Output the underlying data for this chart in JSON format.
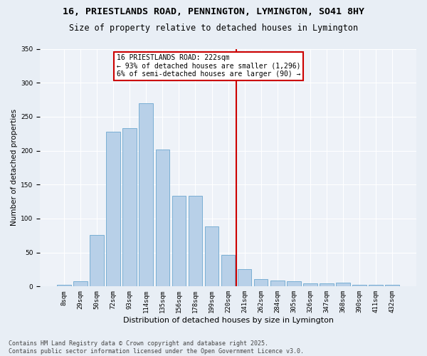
{
  "title_line1": "16, PRIESTLANDS ROAD, PENNINGTON, LYMINGTON, SO41 8HY",
  "title_line2": "Size of property relative to detached houses in Lymington",
  "xlabel": "Distribution of detached houses by size in Lymington",
  "ylabel": "Number of detached properties",
  "categories": [
    "8sqm",
    "29sqm",
    "50sqm",
    "72sqm",
    "93sqm",
    "114sqm",
    "135sqm",
    "156sqm",
    "178sqm",
    "199sqm",
    "220sqm",
    "241sqm",
    "262sqm",
    "284sqm",
    "305sqm",
    "326sqm",
    "347sqm",
    "368sqm",
    "390sqm",
    "411sqm",
    "432sqm"
  ],
  "values": [
    2,
    8,
    76,
    228,
    233,
    270,
    202,
    133,
    133,
    88,
    46,
    25,
    11,
    9,
    8,
    5,
    5,
    6,
    2,
    2,
    2
  ],
  "bar_color": "#b8d0e8",
  "bar_edge_color": "#7aafd4",
  "vline_color": "#cc0000",
  "annotation_text": "16 PRIESTLANDS ROAD: 222sqm\n← 93% of detached houses are smaller (1,296)\n6% of semi-detached houses are larger (90) →",
  "annotation_box_color": "#cc0000",
  "ylim": [
    0,
    350
  ],
  "yticks": [
    0,
    50,
    100,
    150,
    200,
    250,
    300,
    350
  ],
  "footer": "Contains HM Land Registry data © Crown copyright and database right 2025.\nContains public sector information licensed under the Open Government Licence v3.0.",
  "bg_color": "#e8eef5",
  "plot_bg_color": "#eef2f8",
  "title_fontsize": 9.5,
  "subtitle_fontsize": 8.5,
  "tick_fontsize": 6.5,
  "ylabel_fontsize": 7.5,
  "xlabel_fontsize": 8,
  "footer_fontsize": 6,
  "annot_fontsize": 7
}
